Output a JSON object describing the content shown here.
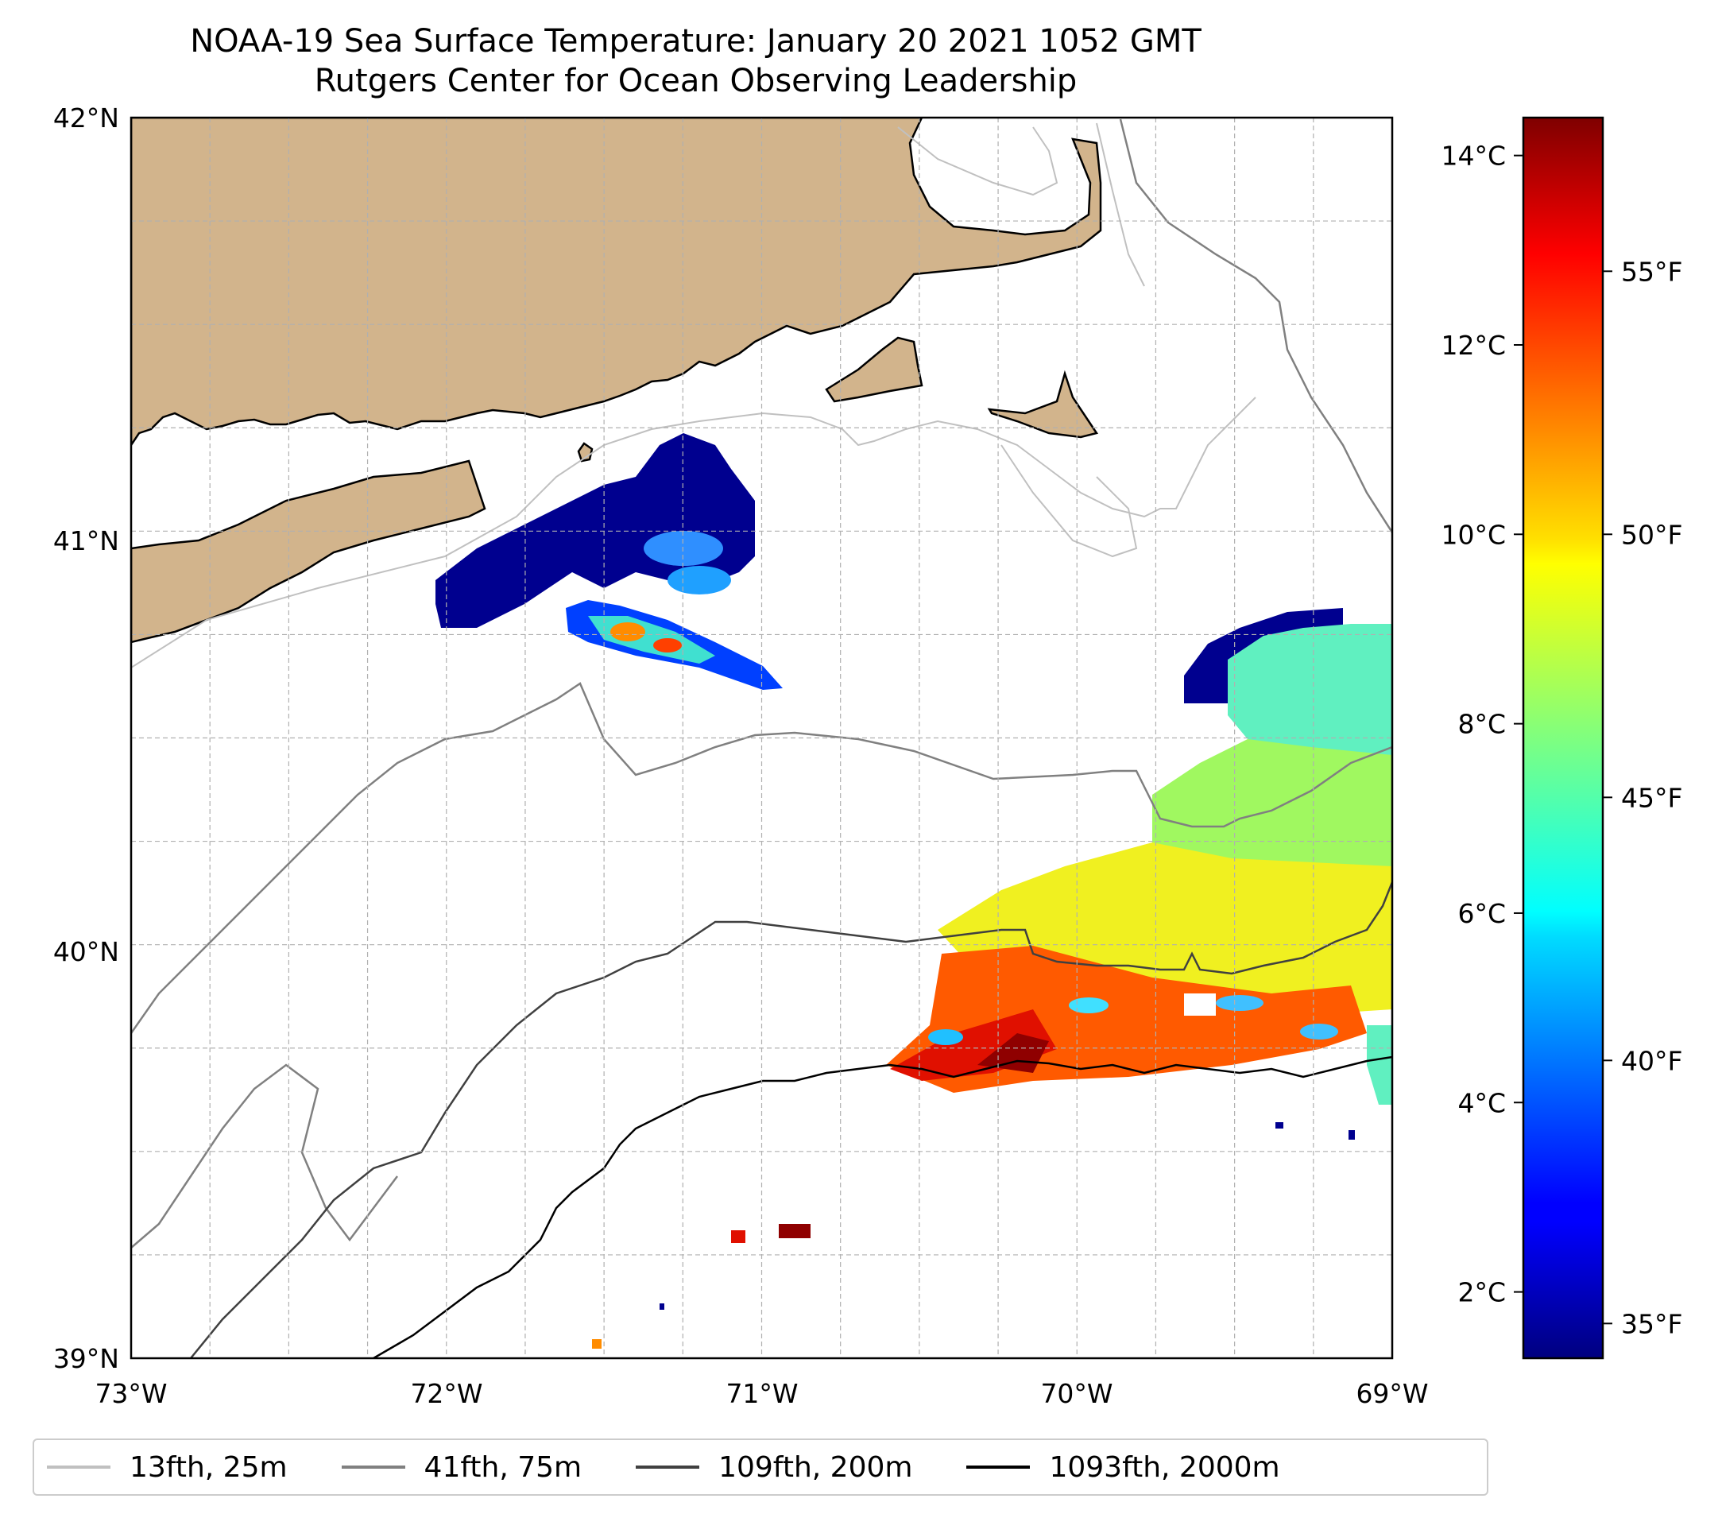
{
  "title": {
    "line1": "NOAA-19 Sea Surface Temperature: January 20 2021 1052 GMT",
    "line2": "Rutgers Center for Ocean Observing Leadership"
  },
  "map": {
    "lon_range": [
      -73,
      -69
    ],
    "lat_range": [
      39,
      42
    ],
    "x_tick_labels": [
      "73°W",
      "72°W",
      "71°W",
      "70°W",
      "69°W"
    ],
    "y_tick_labels": [
      "39°N",
      "40°N",
      "41°N",
      "42°N"
    ],
    "grid": true,
    "land_color": "#d2b48c"
  },
  "colorbar": {
    "colormap": "jet",
    "range_celsius": [
      1.3,
      14.4
    ],
    "celsius_ticks": [
      "2°C",
      "4°C",
      "6°C",
      "8°C",
      "10°C",
      "12°C",
      "14°C"
    ],
    "celsius_values": [
      2,
      4,
      6,
      8,
      10,
      12,
      14
    ],
    "fahrenheit_ticks": [
      "35°F",
      "40°F",
      "45°F",
      "50°F",
      "55°F"
    ],
    "fahrenheit_values": [
      35,
      40,
      45,
      50,
      55
    ]
  },
  "legend": {
    "placement": "bottom",
    "items": [
      {
        "label": "13fth, 25m",
        "color": "#c0c0c0"
      },
      {
        "label": "41fth, 75m",
        "color": "#808080"
      },
      {
        "label": "109fth, 200m",
        "color": "#404040"
      },
      {
        "label": "1093fth, 2000m",
        "color": "#000000"
      }
    ]
  }
}
